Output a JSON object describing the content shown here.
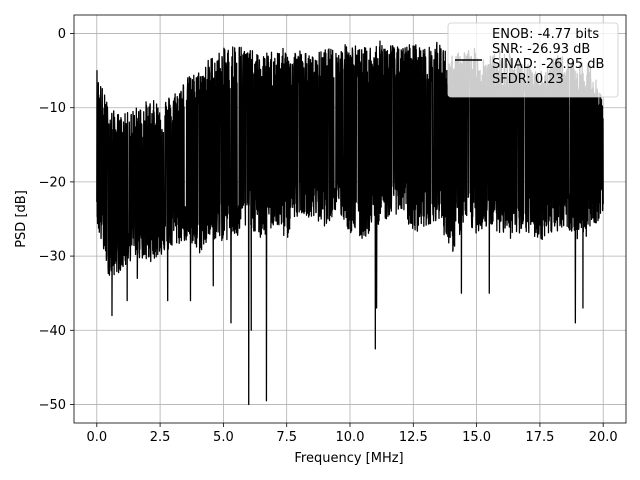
{
  "chart_data": {
    "type": "line",
    "xlabel": "Frequency [MHz]",
    "ylabel": "PSD [dB]",
    "xlim": [
      -0.9,
      20.9
    ],
    "ylim": [
      -52.5,
      2.5
    ],
    "xticks": [
      0.0,
      2.5,
      5.0,
      7.5,
      10.0,
      12.5,
      15.0,
      17.5,
      20.0
    ],
    "xtick_labels": [
      "0.0",
      "2.5",
      "5.0",
      "7.5",
      "10.0",
      "12.5",
      "15.0",
      "17.5",
      "20.0"
    ],
    "yticks": [
      0,
      -10,
      -20,
      -30,
      -40,
      -50
    ],
    "ytick_labels": [
      "0",
      "−10",
      "−20",
      "−30",
      "−40",
      "−50"
    ],
    "grid": true,
    "legend_position": "upper-right",
    "series": [
      {
        "color": "#000000",
        "x_range": [
          0.0,
          20.0
        ],
        "upper_envelope": {
          "x": [
            0.0,
            0.5,
            1.0,
            1.5,
            2.0,
            2.5,
            3.0,
            3.5,
            4.0,
            4.5,
            5.0,
            5.5,
            6.0,
            6.5,
            7.0,
            7.5,
            8.0,
            8.5,
            9.0,
            9.5,
            10.0,
            10.5,
            11.0,
            11.5,
            12.0,
            12.5,
            13.0,
            13.5,
            14.0,
            14.5,
            15.0,
            15.5,
            16.0,
            16.5,
            17.0,
            17.5,
            18.0,
            18.5,
            19.0,
            19.5,
            20.0
          ],
          "y": [
            -5,
            -10,
            -11,
            -10,
            -9,
            -9,
            -8,
            -6,
            -5,
            -3,
            -2,
            -1,
            -2,
            -3,
            -2,
            -2,
            -2,
            -3,
            -2,
            -2,
            -1,
            -2,
            -1,
            -1,
            -2,
            -1,
            -2,
            -1,
            -3,
            -2,
            -2,
            -3,
            -2,
            -3,
            -4,
            -5,
            -3,
            -3,
            -4,
            -4,
            -9
          ]
        },
        "lower_envelope": {
          "x": [
            0.0,
            0.5,
            1.0,
            1.5,
            2.0,
            2.5,
            3.0,
            3.5,
            4.0,
            4.5,
            5.0,
            5.5,
            6.0,
            6.5,
            7.0,
            7.5,
            8.0,
            8.5,
            9.0,
            9.5,
            10.0,
            10.5,
            11.0,
            11.5,
            12.0,
            12.5,
            13.0,
            13.5,
            14.0,
            14.5,
            15.0,
            15.5,
            16.0,
            16.5,
            17.0,
            17.5,
            18.0,
            18.5,
            19.0,
            19.5,
            20.0
          ],
          "y": [
            -26,
            -33,
            -32,
            -30,
            -31,
            -30,
            -29,
            -28,
            -30,
            -28,
            -28,
            -28,
            -26,
            -28,
            -26,
            -28,
            -24,
            -25,
            -26,
            -24,
            -27,
            -28,
            -26,
            -25,
            -24,
            -27,
            -26,
            -25,
            -30,
            -26,
            -27,
            -26,
            -27,
            -28,
            -27,
            -28,
            -27,
            -26,
            -28,
            -27,
            -24
          ]
        },
        "deep_dips": [
          {
            "x": 0.6,
            "y": -38
          },
          {
            "x": 1.2,
            "y": -36
          },
          {
            "x": 1.6,
            "y": -33
          },
          {
            "x": 2.8,
            "y": -36
          },
          {
            "x": 3.7,
            "y": -36
          },
          {
            "x": 4.6,
            "y": -34
          },
          {
            "x": 5.3,
            "y": -39
          },
          {
            "x": 6.0,
            "y": -50
          },
          {
            "x": 6.1,
            "y": -40
          },
          {
            "x": 6.7,
            "y": -49.5
          },
          {
            "x": 11.0,
            "y": -42.5
          },
          {
            "x": 11.05,
            "y": -37
          },
          {
            "x": 14.4,
            "y": -35
          },
          {
            "x": 15.5,
            "y": -35
          },
          {
            "x": 18.9,
            "y": -39
          },
          {
            "x": 19.2,
            "y": -37
          }
        ]
      }
    ],
    "legend": {
      "entries": [
        "ENOB: -4.77 bits",
        "SNR: -26.93 dB",
        "SINAD: -26.95 dB",
        "SFDR: 0.23"
      ]
    }
  }
}
